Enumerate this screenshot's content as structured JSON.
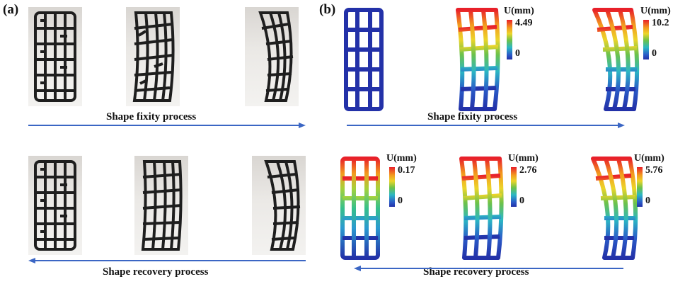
{
  "panel_a": {
    "label": "(a)",
    "top_caption": "Shape fixity process",
    "bottom_caption": "Shape recovery process"
  },
  "panel_b": {
    "label": "(b)",
    "top_caption": "Shape fixity process",
    "bottom_caption": "Shape recovery process",
    "legends": [
      {
        "unit": "U(mm)",
        "max": "4.49",
        "min": "0"
      },
      {
        "unit": "U(mm)",
        "max": "10.2",
        "min": "0"
      },
      {
        "unit": "U(mm)",
        "max": "0.17",
        "min": "0"
      },
      {
        "unit": "U(mm)",
        "max": "2.76",
        "min": "0"
      },
      {
        "unit": "U(mm)",
        "max": "5.76",
        "min": "0"
      }
    ]
  },
  "colors": {
    "arrow": "#3b66c4",
    "stent_photo": "#1e1e1e",
    "undeformed_model": "#2331a8"
  }
}
